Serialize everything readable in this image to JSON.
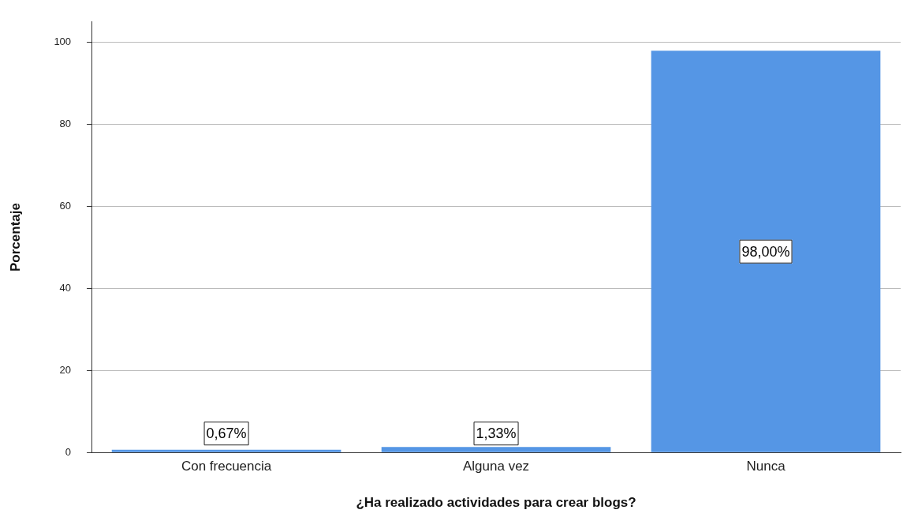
{
  "chart_data": {
    "type": "bar",
    "xlabel": "¿Ha realizado actividades para crear blogs?",
    "ylabel": "Porcentaje",
    "categories": [
      "Con frecuencia",
      "Alguna vez",
      "Nunca"
    ],
    "values": [
      0.67,
      1.33,
      98.0
    ],
    "value_labels": [
      "0,67%",
      "1,33%",
      "98,00%"
    ],
    "color": "#5596e5",
    "ylim": [
      0,
      105
    ],
    "yticks": [
      0,
      20,
      40,
      60,
      80,
      100
    ],
    "grid": "y",
    "legend": false
  }
}
